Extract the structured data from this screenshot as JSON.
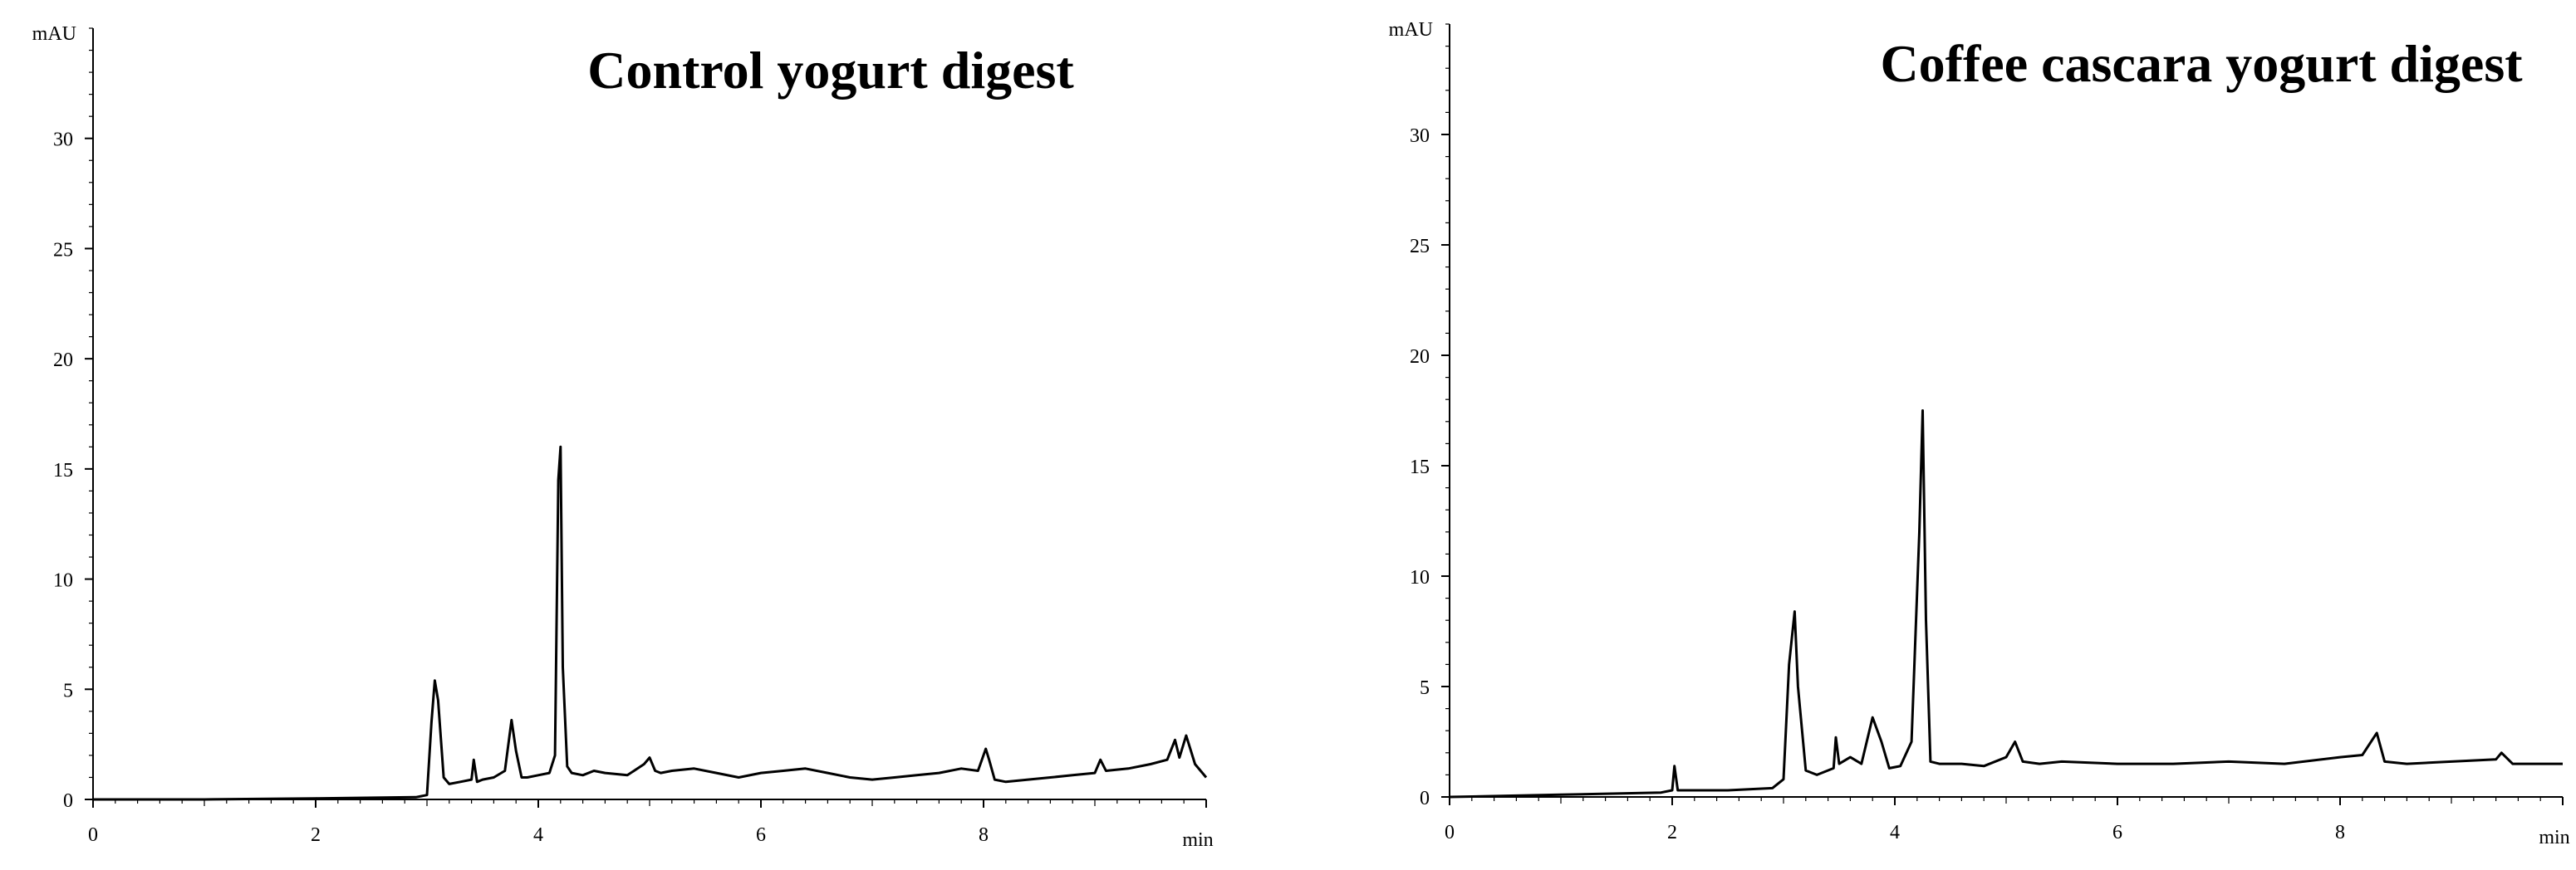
{
  "colors": {
    "line": "#000000",
    "background": "#ffffff"
  },
  "chart_data": [
    {
      "type": "line",
      "title": "Control yogurt digest",
      "ylabel": "mAU",
      "xlabel": "min",
      "xlim": [
        0,
        10
      ],
      "ylim": [
        0,
        35
      ],
      "x_ticks": [
        0,
        2,
        4,
        6,
        8
      ],
      "x_tick_labels": [
        "0",
        "2",
        "4",
        "6",
        "8"
      ],
      "y_ticks": [
        0,
        5,
        10,
        15,
        20,
        25,
        30
      ],
      "y_tick_labels": [
        "0",
        "5",
        "10",
        "15",
        "20",
        "25",
        "30"
      ],
      "grid": false,
      "series": [
        {
          "x": [
            0,
            1,
            2,
            2.9,
            3.0,
            3.04,
            3.07,
            3.1,
            3.15,
            3.2,
            3.3,
            3.4,
            3.42,
            3.45,
            3.5,
            3.6,
            3.7,
            3.76,
            3.8,
            3.85,
            3.9,
            4.0,
            4.1,
            4.15,
            4.18,
            4.2,
            4.22,
            4.26,
            4.3,
            4.4,
            4.5,
            4.6,
            4.8,
            4.95,
            5.0,
            5.05,
            5.1,
            5.2,
            5.4,
            5.6,
            5.8,
            6.0,
            6.2,
            6.4,
            6.6,
            6.8,
            7.0,
            7.2,
            7.4,
            7.6,
            7.8,
            7.95,
            8.02,
            8.05,
            8.1,
            8.2,
            8.4,
            8.6,
            8.8,
            9.0,
            9.05,
            9.1,
            9.3,
            9.5,
            9.65,
            9.72,
            9.76,
            9.82,
            9.9,
            10.0
          ],
          "y": [
            0.0,
            0.0,
            0.05,
            0.1,
            0.2,
            3.5,
            5.4,
            4.5,
            1.0,
            0.7,
            0.8,
            0.9,
            1.8,
            0.8,
            0.9,
            1.0,
            1.3,
            3.6,
            2.2,
            1.0,
            1.0,
            1.1,
            1.2,
            2.0,
            14.5,
            16.0,
            6.0,
            1.5,
            1.2,
            1.1,
            1.3,
            1.2,
            1.1,
            1.6,
            1.9,
            1.3,
            1.2,
            1.3,
            1.4,
            1.2,
            1.0,
            1.2,
            1.3,
            1.4,
            1.2,
            1.0,
            0.9,
            1.0,
            1.1,
            1.2,
            1.4,
            1.3,
            2.3,
            1.8,
            0.9,
            0.8,
            0.9,
            1.0,
            1.1,
            1.2,
            1.8,
            1.3,
            1.4,
            1.6,
            1.8,
            2.7,
            1.9,
            2.9,
            1.6,
            1.0
          ]
        }
      ]
    },
    {
      "type": "line",
      "title": "Coffee cascara yogurt digest",
      "ylabel": "mAU",
      "xlabel": "min",
      "xlim": [
        0,
        10
      ],
      "ylim": [
        0,
        35
      ],
      "x_ticks": [
        0,
        2,
        4,
        6,
        8
      ],
      "x_tick_labels": [
        "0",
        "2",
        "4",
        "6",
        "8"
      ],
      "y_ticks": [
        0,
        5,
        10,
        15,
        20,
        25,
        30
      ],
      "y_tick_labels": [
        "0",
        "5",
        "10",
        "15",
        "20",
        "25",
        "30"
      ],
      "grid": false,
      "series": [
        {
          "x": [
            0,
            1,
            1.9,
            2.0,
            2.02,
            2.05,
            2.5,
            2.9,
            3.0,
            3.05,
            3.1,
            3.13,
            3.2,
            3.3,
            3.45,
            3.47,
            3.5,
            3.6,
            3.7,
            3.8,
            3.88,
            3.95,
            4.05,
            4.15,
            4.22,
            4.25,
            4.28,
            4.32,
            4.4,
            4.6,
            4.8,
            5.0,
            5.08,
            5.15,
            5.3,
            5.5,
            6.0,
            6.5,
            7.0,
            7.5,
            8.0,
            8.2,
            8.33,
            8.4,
            8.6,
            9.0,
            9.4,
            9.45,
            9.55,
            10.0
          ],
          "y": [
            0.0,
            0.1,
            0.2,
            0.3,
            1.4,
            0.3,
            0.3,
            0.4,
            0.8,
            6.0,
            8.4,
            5.0,
            1.2,
            1.0,
            1.3,
            2.7,
            1.5,
            1.8,
            1.5,
            3.6,
            2.5,
            1.3,
            1.4,
            2.5,
            12.0,
            17.5,
            8.0,
            1.6,
            1.5,
            1.5,
            1.4,
            1.8,
            2.5,
            1.6,
            1.5,
            1.6,
            1.5,
            1.5,
            1.6,
            1.5,
            1.8,
            1.9,
            2.9,
            1.6,
            1.5,
            1.6,
            1.7,
            2.0,
            1.5,
            1.5
          ]
        }
      ]
    }
  ]
}
